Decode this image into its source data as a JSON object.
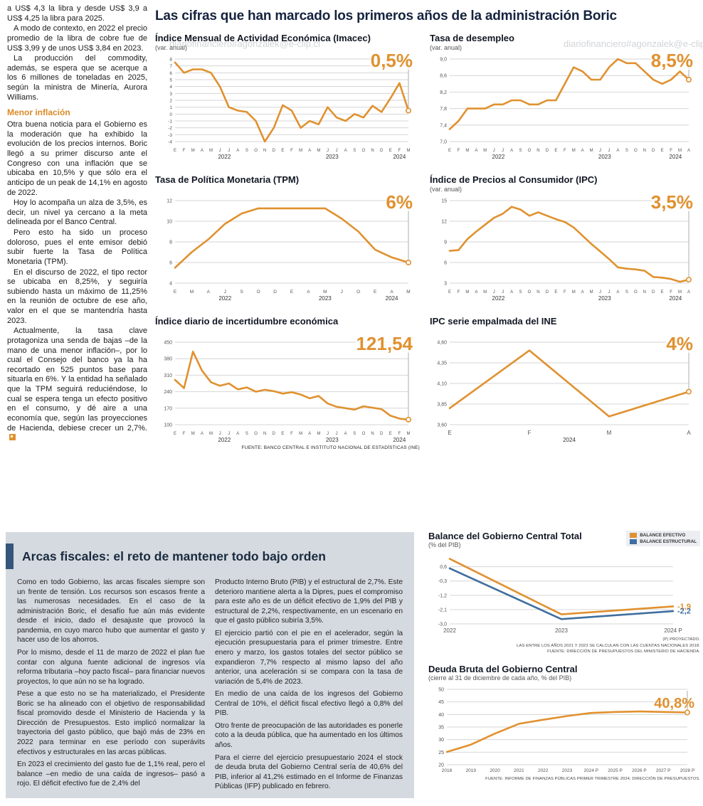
{
  "watermark": "diariofinanciero#agonzalek@e-clip.cl",
  "main_title": "Las cifras que han marcado los primeros años de la administración Boric",
  "source_top": "FUENTE: BANCO CENTRAL E INSTITUTO NACIONAL DE ESTADÍSTICAS (INE)",
  "colors": {
    "accent_orange": "#E0912F",
    "accent_blue": "#3E6F9F",
    "navy": "#15233F",
    "panel_gray": "#D5DAE0"
  },
  "left_article": {
    "intro": [
      "a US$ 4,3 la libra y desde US$ 3,9 a US$ 4,25 la libra para 2025.",
      "A modo de contexto, en 2022 el precio promedio de la libra de cobre fue de US$ 3,99 y de unos US$ 3,84 en 2023.",
      "La producción del commodity, además, se espera que se acerque a los 6 millones de toneladas en 2025, según la ministra de Minería, Aurora Williams."
    ],
    "heading": "Menor inflación",
    "body": [
      "Otra buena noticia para el Gobierno es la moderación que ha exhibido la evolución de los precios internos. Boric llegó a su primer discurso ante el Congreso con una inflación que se ubicaba en 10,5% y que sólo era el anticipo de un peak de 14,1% en agosto de 2022.",
      "Hoy lo acompaña un alza de 3,5%, es decir, un nivel ya cercano a la meta delineada por el Banco Central.",
      "Pero esto ha sido un proceso doloroso, pues el ente emisor debió subir fuerte la Tasa de Política Monetaria (TPM).",
      "En el discurso de 2022, el tipo rector se ubicaba en 8,25%, y seguiría subiendo hasta un máximo de 11,25% en la reunión de octubre de ese año, valor en el que se mantendría hasta 2023."
    ],
    "last": "Actualmente, la tasa clave protagoniza una senda de bajas –de la mano de una menor inflación–, por lo cual el Consejo del banco ya la ha recortado en 525 puntos base para situarla en 6%. Y la entidad ha señalado que la TPM seguirá reduciéndose, lo cual se espera tenga un efecto positivo en el consumo, y dé aire a una economía que, según las proyecciones de Hacienda, debiese crecer un 2,7%."
  },
  "bottom": {
    "headline": "Arcas fiscales: el reto de mantener todo bajo orden",
    "col1": [
      "Como en todo Gobierno, las arcas fiscales siempre son un frente de tensión. Los recursos son escasos frente a las numerosas necesidades. En el caso de la administración Boric, el desafío fue aún más evidente desde el inicio, dado el desajuste que provocó la pandemia, en cuyo marco hubo que aumentar el gasto y hacer uso de los ahorros.",
      "Por lo mismo, desde el 11 de marzo de 2022 el plan fue contar con alguna fuente adicional de ingresos vía reforma tributaria –hoy pacto fiscal– para financiar nuevos proyectos, lo que aún no se ha logrado.",
      "Pese a que esto no se ha materializado, el Presidente Boric se ha alineado con el objetivo de responsabilidad fiscal promovido desde el Ministerio de Hacienda y la Dirección de Presupuestos. Esto implicó normalizar la trayectoria del gasto público, que bajó más de 23% en 2022 para terminar en ese período con superávits efectivos y estructurales en las arcas públicas.",
      "En 2023 el crecimiento del gasto fue de 1,1% real, pero el balance –en medio de una caída de ingresos– pasó a rojo. El déficit efectivo fue de 2,4% del"
    ],
    "col2": [
      "Producto Interno Bruto (PIB) y el estructural de 2,7%. Este deterioro mantiene alerta a la Dipres, pues el compromiso para este año es de un déficit efectivo de 1,9% del PIB y estructural de 2,2%, respectivamente, en un escenario en que el gasto público subiría 3,5%.",
      "El ejercicio partió con el pie en el acelerador, según la ejecución presupuestaria para el primer trimestre. Entre enero y marzo, los gastos totales del sector público se expandieron 7,7% respecto al mismo lapso del año anterior, una aceleración si se compara con la tasa de variación de 5,4% de 2023.",
      "En medio de una caída de los ingresos del Gobierno Central de 10%, el déficit fiscal efectivo llegó a 0,8% del PIB.",
      "Otro frente de preocupación de las autoridades es ponerle coto a la deuda pública, que ha aumentado en los últimos años.",
      "Para el cierre del ejercicio presupuestario 2024 el stock de deuda bruta del Gobierno Central sería de 40,6% del PIB, inferior al 41,2% estimado en el Informe de Finanzas Públicas (IFP) publicado en febrero."
    ]
  },
  "chart_data": [
    {
      "id": "imacec",
      "type": "line",
      "title": "Índice Mensual de Actividad Económica (Imacec)",
      "subtitle": "(var. anual)",
      "highlight": "0,5%",
      "ylim": [
        -4,
        8
      ],
      "yticks": [
        "8",
        "7",
        "6",
        "5",
        "4",
        "3",
        "2",
        "1",
        "0",
        "-1",
        "-2",
        "-3",
        "-4"
      ],
      "x_labels": [
        "E",
        "F",
        "M",
        "A",
        "M",
        "J",
        "J",
        "A",
        "S",
        "O",
        "N",
        "D",
        "E",
        "F",
        "M",
        "A",
        "M",
        "J",
        "J",
        "A",
        "S",
        "O",
        "N",
        "D",
        "E",
        "F",
        "M"
      ],
      "years": [
        {
          "label": "2022",
          "from": 0,
          "to": 11
        },
        {
          "label": "2023",
          "from": 12,
          "to": 23
        },
        {
          "label": "2024",
          "from": 24,
          "to": 26
        }
      ],
      "values": [
        7.5,
        6.0,
        6.5,
        6.5,
        6.0,
        4.0,
        1.0,
        0.5,
        0.3,
        -1.0,
        -4.0,
        -2.0,
        1.3,
        0.5,
        -2.0,
        -1.0,
        -1.5,
        1.0,
        -0.5,
        -1.0,
        0.0,
        -0.5,
        1.2,
        0.3,
        2.3,
        4.5,
        0.5
      ]
    },
    {
      "id": "desempleo",
      "type": "line",
      "title": "Tasa de desempleo",
      "subtitle": "(var. anual)",
      "highlight": "8,5%",
      "ylim": [
        7.0,
        9.0
      ],
      "yticks": [
        "9,0",
        "8,6",
        "8,2",
        "7,8",
        "7,4",
        "7,0"
      ],
      "x_labels": [
        "E",
        "F",
        "M",
        "A",
        "M",
        "J",
        "J",
        "A",
        "S",
        "O",
        "N",
        "D",
        "E",
        "F",
        "M",
        "A",
        "M",
        "J",
        "J",
        "A",
        "S",
        "O",
        "N",
        "D",
        "E",
        "F",
        "M",
        "A"
      ],
      "years": [
        {
          "label": "2022",
          "from": 0,
          "to": 11
        },
        {
          "label": "2023",
          "from": 12,
          "to": 23
        },
        {
          "label": "2024",
          "from": 24,
          "to": 27
        }
      ],
      "values": [
        7.3,
        7.5,
        7.8,
        7.8,
        7.8,
        7.9,
        7.9,
        8.0,
        8.0,
        7.9,
        7.9,
        8.0,
        8.0,
        8.4,
        8.8,
        8.7,
        8.5,
        8.5,
        8.8,
        9.0,
        8.9,
        8.9,
        8.7,
        8.5,
        8.4,
        8.5,
        8.7,
        8.5
      ]
    },
    {
      "id": "tpm",
      "type": "line",
      "title": "Tasa de Política Monetaria (TPM)",
      "subtitle": "",
      "highlight": "6%",
      "ylim": [
        4,
        12
      ],
      "yticks": [
        "12",
        "10",
        "8",
        "6",
        "4"
      ],
      "x_labels": [
        "E",
        "M",
        "A",
        "J",
        "S",
        "O",
        "D",
        "E",
        "A",
        "M",
        "J",
        "O",
        "E",
        "A",
        "M"
      ],
      "years": [
        {
          "label": "2022",
          "from": 0,
          "to": 6
        },
        {
          "label": "2023",
          "from": 7,
          "to": 11
        },
        {
          "label": "2024",
          "from": 12,
          "to": 14
        }
      ],
      "values": [
        5.5,
        7.0,
        8.25,
        9.75,
        10.75,
        11.25,
        11.25,
        11.25,
        11.25,
        11.25,
        10.25,
        9.0,
        7.25,
        6.5,
        6.0
      ]
    },
    {
      "id": "ipc",
      "type": "line",
      "title": "Índice de Precios al Consumidor (IPC)",
      "subtitle": "(var. anual)",
      "highlight": "3,5%",
      "ylim": [
        3,
        15
      ],
      "yticks": [
        "15",
        "12",
        "9",
        "6",
        "3"
      ],
      "x_labels": [
        "E",
        "F",
        "M",
        "A",
        "M",
        "J",
        "J",
        "A",
        "S",
        "O",
        "N",
        "D",
        "E",
        "F",
        "M",
        "A",
        "M",
        "J",
        "J",
        "A",
        "S",
        "O",
        "N",
        "D",
        "E",
        "F",
        "M",
        "A"
      ],
      "years": [
        {
          "label": "2022",
          "from": 0,
          "to": 11
        },
        {
          "label": "2023",
          "from": 12,
          "to": 23
        },
        {
          "label": "2024",
          "from": 24,
          "to": 27
        }
      ],
      "values": [
        7.7,
        7.8,
        9.4,
        10.5,
        11.5,
        12.5,
        13.1,
        14.1,
        13.7,
        12.8,
        13.3,
        12.8,
        12.3,
        11.9,
        11.1,
        9.9,
        8.7,
        7.6,
        6.5,
        5.3,
        5.1,
        5.0,
        4.8,
        3.9,
        3.8,
        3.6,
        3.2,
        3.5
      ]
    },
    {
      "id": "incertidumbre",
      "type": "line",
      "title": "Índice diario de incertidumbre económica",
      "subtitle": "",
      "highlight": "121,54",
      "ylim": [
        100,
        450
      ],
      "yticks": [
        "450",
        "380",
        "310",
        "240",
        "170",
        "100"
      ],
      "x_labels": [
        "E",
        "F",
        "M",
        "A",
        "M",
        "J",
        "J",
        "A",
        "S",
        "O",
        "N",
        "D",
        "E",
        "F",
        "M",
        "A",
        "M",
        "J",
        "J",
        "A",
        "S",
        "O",
        "N",
        "D",
        "E",
        "F",
        "M"
      ],
      "years": [
        {
          "label": "2022",
          "from": 0,
          "to": 11
        },
        {
          "label": "2023",
          "from": 12,
          "to": 23
        },
        {
          "label": "2024",
          "from": 24,
          "to": 26
        }
      ],
      "values": [
        290,
        255,
        410,
        330,
        280,
        265,
        275,
        250,
        258,
        240,
        248,
        242,
        232,
        238,
        228,
        212,
        222,
        190,
        176,
        170,
        164,
        178,
        172,
        166,
        138,
        126,
        121.54
      ]
    },
    {
      "id": "ipc-empalmada",
      "type": "line",
      "title": "IPC serie empalmada del INE",
      "subtitle": "",
      "highlight": "4%",
      "ylim": [
        3.6,
        4.6
      ],
      "yticks": [
        "4,60",
        "4,35",
        "4,10",
        "3,85",
        "3,60"
      ],
      "x_labels": [
        "E",
        "F",
        "M",
        "A"
      ],
      "years": [
        {
          "label": "2024",
          "from": 0,
          "to": 3
        }
      ],
      "values": [
        3.8,
        4.5,
        3.7,
        4.0
      ]
    },
    {
      "id": "balance-gobierno-central",
      "type": "line",
      "title": "Balance del Gobierno Central Total",
      "subtitle": "(% del PIB)",
      "ylim": [
        -3.0,
        1.3
      ],
      "yticks": [
        "0,6",
        "-0,3",
        "-1,2",
        "-2,1",
        "-3,0"
      ],
      "x_labels": [
        "2022",
        "2023",
        "2024 P"
      ],
      "margins": {
        "l": 30,
        "r": 38,
        "t": 6,
        "b": 16
      },
      "series": [
        {
          "name": "BALANCE EFECTIVO",
          "color": "#E0912F",
          "values": [
            1.1,
            -2.4,
            -1.9
          ],
          "end_label": "-1,9"
        },
        {
          "name": "BALANCE ESTRUCTURAL",
          "color": "#3E6F9F",
          "values": [
            0.5,
            -2.7,
            -2.2
          ],
          "end_label": "-2,2"
        }
      ],
      "footnotes": [
        "(P) PROYECTADO.",
        "LAS ENTRE LOS AÑOS 2021 Y 2023 SE CALCULAN CON LAS CUENTAS NACIONALES 2018.",
        "FUENTE: DIRECCIÓN DE PRESUPUESTOS DEL MINISTERIO DE HACIENDA."
      ]
    },
    {
      "id": "deuda-bruta",
      "type": "line",
      "title": "Deuda Bruta del Gobierno Central",
      "subtitle": "(cierre al 31 de diciembre de cada año, % del PIB)",
      "highlight": "40,8%",
      "ylim": [
        20,
        50
      ],
      "yticks": [
        "50",
        "45",
        "40",
        "35",
        "30",
        "25",
        "20"
      ],
      "x_labels": [
        "2018",
        "2019",
        "2020",
        "2021",
        "2022",
        "2023",
        "2024 P",
        "2025 P",
        "2026 P",
        "2027 P",
        "2028 P"
      ],
      "margins": {
        "l": 26,
        "r": 18,
        "t": 8,
        "b": 14
      },
      "values": [
        25.1,
        28.0,
        32.4,
        36.3,
        37.9,
        39.4,
        40.6,
        41.0,
        41.2,
        41.0,
        40.8
      ],
      "footnotes": [
        "FUENTE: INFORME DE FINANZAS PÚBLICAS PRIMER TRIMESTRE 2024, DIRECCIÓN DE PRESUPUESTOS."
      ]
    }
  ]
}
